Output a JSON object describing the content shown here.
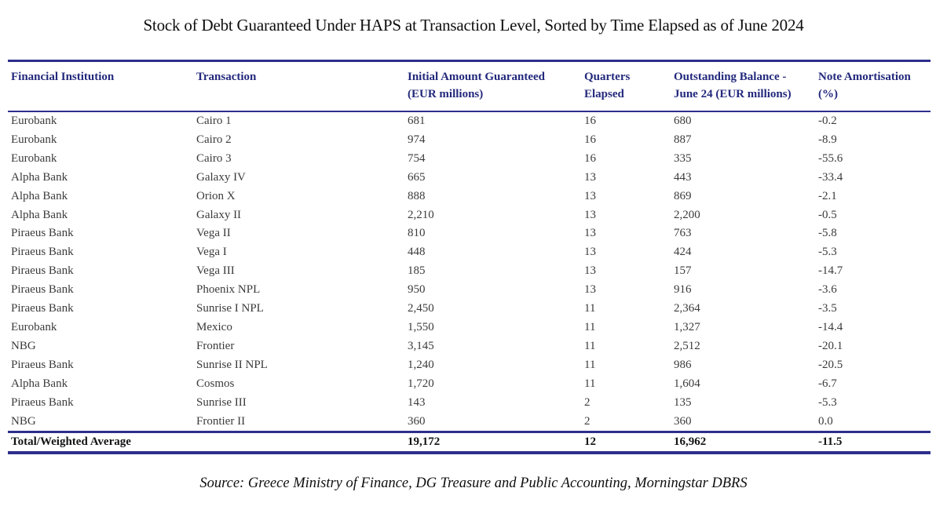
{
  "title": "Stock of Debt Guaranteed Under HAPS at Transaction Level, Sorted by Time Elapsed as of June 2024",
  "source": "Source: Greece Ministry of Finance, DG Treasure and Public Accounting, Morningstar DBRS",
  "colors": {
    "rule_navy": "#2e2e8c",
    "header_text": "#23297c",
    "body_text": "#3b3b3b",
    "total_text": "#141414"
  },
  "table": {
    "columns": [
      {
        "line1": "Financial Institution",
        "line2": ""
      },
      {
        "line1": "Transaction",
        "line2": ""
      },
      {
        "line1": "Initial Amount Guaranteed",
        "line2": "(EUR millions)"
      },
      {
        "line1": "Quarters",
        "line2": "Elapsed"
      },
      {
        "line1": "Outstanding Balance -",
        "line2": "June 24 (EUR millions)"
      },
      {
        "line1": "Note Amortisation",
        "line2": "(%)"
      }
    ],
    "rows": [
      {
        "institution": "Eurobank",
        "transaction": "Cairo 1",
        "initial_amount": "681",
        "quarters_elapsed": "16",
        "outstanding_balance": "680",
        "note_amortisation": "-0.2"
      },
      {
        "institution": "Eurobank",
        "transaction": "Cairo 2",
        "initial_amount": "974",
        "quarters_elapsed": "16",
        "outstanding_balance": "887",
        "note_amortisation": "-8.9"
      },
      {
        "institution": "Eurobank",
        "transaction": "Cairo 3",
        "initial_amount": "754",
        "quarters_elapsed": "16",
        "outstanding_balance": "335",
        "note_amortisation": "-55.6"
      },
      {
        "institution": "Alpha Bank",
        "transaction": "Galaxy IV",
        "initial_amount": "665",
        "quarters_elapsed": "13",
        "outstanding_balance": "443",
        "note_amortisation": "-33.4"
      },
      {
        "institution": "Alpha Bank",
        "transaction": "Orion X",
        "initial_amount": "888",
        "quarters_elapsed": "13",
        "outstanding_balance": "869",
        "note_amortisation": "-2.1"
      },
      {
        "institution": "Alpha Bank",
        "transaction": "Galaxy II",
        "initial_amount": "2,210",
        "quarters_elapsed": "13",
        "outstanding_balance": "2,200",
        "note_amortisation": "-0.5"
      },
      {
        "institution": "Piraeus Bank",
        "transaction": "Vega II",
        "initial_amount": "810",
        "quarters_elapsed": "13",
        "outstanding_balance": "763",
        "note_amortisation": "-5.8"
      },
      {
        "institution": "Piraeus Bank",
        "transaction": "Vega I",
        "initial_amount": "448",
        "quarters_elapsed": "13",
        "outstanding_balance": "424",
        "note_amortisation": "-5.3"
      },
      {
        "institution": "Piraeus Bank",
        "transaction": "Vega III",
        "initial_amount": "185",
        "quarters_elapsed": "13",
        "outstanding_balance": "157",
        "note_amortisation": "-14.7"
      },
      {
        "institution": "Piraeus Bank",
        "transaction": "Phoenix NPL",
        "initial_amount": "950",
        "quarters_elapsed": "13",
        "outstanding_balance": "916",
        "note_amortisation": "-3.6"
      },
      {
        "institution": "Piraeus Bank",
        "transaction": "Sunrise I NPL",
        "initial_amount": "2,450",
        "quarters_elapsed": "11",
        "outstanding_balance": "2,364",
        "note_amortisation": "-3.5"
      },
      {
        "institution": "Eurobank",
        "transaction": "Mexico",
        "initial_amount": "1,550",
        "quarters_elapsed": "11",
        "outstanding_balance": "1,327",
        "note_amortisation": "-14.4"
      },
      {
        "institution": "NBG",
        "transaction": "Frontier",
        "initial_amount": "3,145",
        "quarters_elapsed": "11",
        "outstanding_balance": "2,512",
        "note_amortisation": "-20.1"
      },
      {
        "institution": "Piraeus Bank",
        "transaction": "Sunrise II NPL",
        "initial_amount": "1,240",
        "quarters_elapsed": "11",
        "outstanding_balance": "986",
        "note_amortisation": "-20.5"
      },
      {
        "institution": "Alpha Bank",
        "transaction": "Cosmos",
        "initial_amount": "1,720",
        "quarters_elapsed": "11",
        "outstanding_balance": "1,604",
        "note_amortisation": "-6.7"
      },
      {
        "institution": "Piraeus Bank",
        "transaction": "Sunrise III",
        "initial_amount": "143",
        "quarters_elapsed": "2",
        "outstanding_balance": "135",
        "note_amortisation": "-5.3"
      },
      {
        "institution": "NBG",
        "transaction": "Frontier II",
        "initial_amount": "360",
        "quarters_elapsed": "2",
        "outstanding_balance": "360",
        "note_amortisation": "0.0"
      }
    ],
    "total": {
      "label": "Total/Weighted Average",
      "transaction": "",
      "initial_amount": "19,172",
      "quarters_elapsed": "12",
      "outstanding_balance": "16,962",
      "note_amortisation": "-11.5"
    }
  }
}
